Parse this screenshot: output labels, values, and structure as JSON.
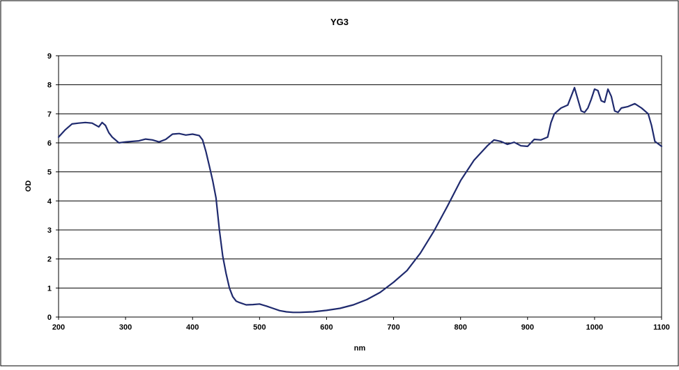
{
  "chart_data": {
    "type": "line",
    "title": "YG3",
    "xlabel": "nm",
    "ylabel": "OD",
    "xlim": [
      200,
      1100
    ],
    "ylim": [
      0,
      9
    ],
    "xticks": [
      200,
      300,
      400,
      500,
      600,
      700,
      800,
      900,
      1000,
      1100
    ],
    "yticks": [
      0,
      1,
      2,
      3,
      4,
      5,
      6,
      7,
      8,
      9
    ],
    "grid": "horizontal",
    "legend": "none",
    "line_color": "#1f2a6e",
    "series": [
      {
        "x": [
          200,
          210,
          220,
          230,
          240,
          250,
          260,
          265,
          270,
          275,
          280,
          290,
          300,
          320,
          330,
          340,
          350,
          360,
          370,
          380,
          390,
          400,
          410,
          415,
          420,
          425,
          430,
          435,
          440,
          445,
          450,
          455,
          460,
          465,
          470,
          480,
          490,
          500,
          510,
          520,
          530,
          540,
          550,
          560,
          570,
          580,
          600,
          620,
          640,
          660,
          680,
          700,
          720,
          740,
          760,
          780,
          800,
          820,
          840,
          850,
          860,
          870,
          880,
          890,
          900,
          910,
          920,
          930,
          935,
          940,
          950,
          960,
          965,
          970,
          975,
          980,
          985,
          990,
          995,
          1000,
          1005,
          1010,
          1015,
          1020,
          1025,
          1030,
          1035,
          1040,
          1050,
          1060,
          1070,
          1080,
          1085,
          1090,
          1100
        ],
        "y": [
          6.2,
          6.45,
          6.65,
          6.68,
          6.7,
          6.68,
          6.55,
          6.7,
          6.6,
          6.35,
          6.2,
          6.0,
          6.03,
          6.07,
          6.13,
          6.1,
          6.03,
          6.12,
          6.3,
          6.32,
          6.27,
          6.3,
          6.25,
          6.1,
          5.7,
          5.2,
          4.7,
          4.1,
          3.0,
          2.1,
          1.5,
          1.0,
          0.7,
          0.55,
          0.5,
          0.42,
          0.43,
          0.45,
          0.38,
          0.3,
          0.22,
          0.18,
          0.16,
          0.16,
          0.17,
          0.18,
          0.23,
          0.3,
          0.42,
          0.6,
          0.85,
          1.2,
          1.6,
          2.2,
          2.95,
          3.8,
          4.7,
          5.4,
          5.9,
          6.1,
          6.05,
          5.95,
          6.02,
          5.9,
          5.88,
          6.12,
          6.1,
          6.2,
          6.7,
          7.0,
          7.2,
          7.3,
          7.6,
          7.9,
          7.5,
          7.1,
          7.05,
          7.2,
          7.5,
          7.85,
          7.8,
          7.45,
          7.4,
          7.85,
          7.6,
          7.1,
          7.05,
          7.2,
          7.25,
          7.35,
          7.2,
          7.0,
          6.6,
          6.05,
          5.88
        ]
      }
    ]
  }
}
